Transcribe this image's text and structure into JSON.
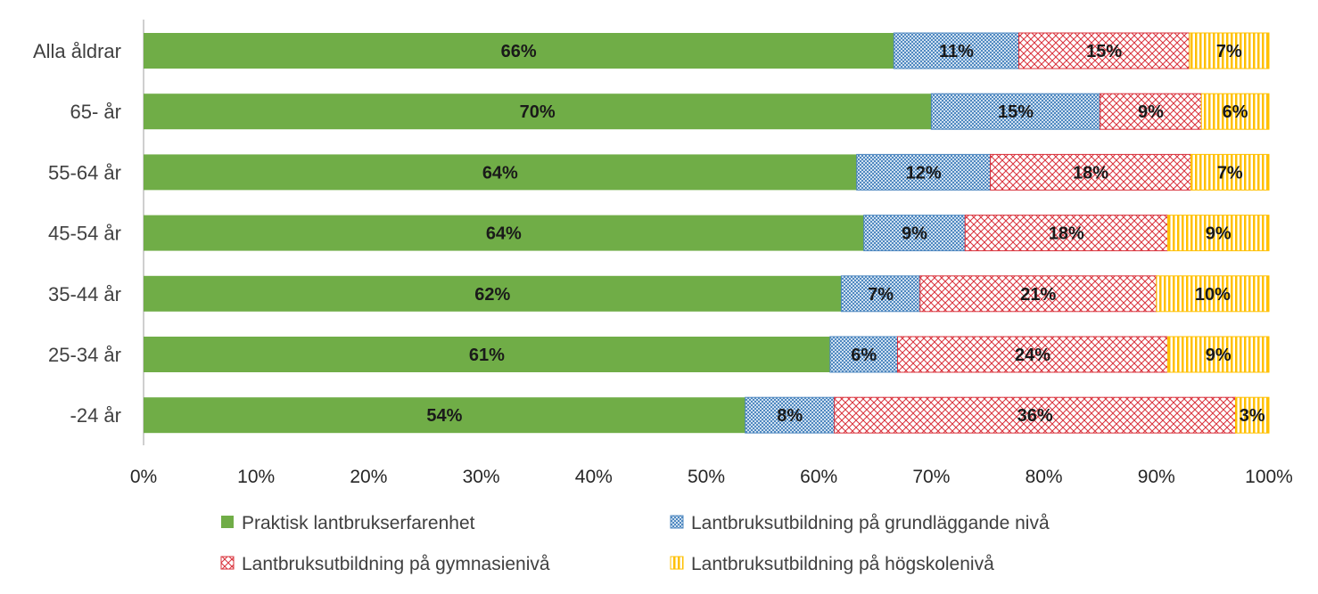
{
  "chart_data": {
    "type": "bar",
    "orientation": "horizontal",
    "stacked": true,
    "categories": [
      "Alla åldrar",
      "65- år",
      "55-64 år",
      "45-54 år",
      "35-44 år",
      "25-34 år",
      "-24 år"
    ],
    "series": [
      {
        "name": "Praktisk lantbrukserfarenhet",
        "values": [
          66,
          70,
          64,
          64,
          62,
          61,
          54
        ],
        "labels": [
          "66%",
          "70%",
          "64%",
          "64%",
          "62%",
          "61%",
          "54%"
        ],
        "color": "#70ad47",
        "pattern": "solid"
      },
      {
        "name": "Lantbruksutbildning på grundläggande nivå",
        "values": [
          11,
          15,
          12,
          9,
          7,
          6,
          8
        ],
        "labels": [
          "11%",
          "15%",
          "12%",
          "9%",
          "7%",
          "6%",
          "8%"
        ],
        "color": "#4f88c0",
        "pattern": "dots"
      },
      {
        "name": "Lantbruksutbildning på gymnasienivå",
        "values": [
          15,
          9,
          18,
          18,
          21,
          24,
          36
        ],
        "labels": [
          "15%",
          "9%",
          "18%",
          "18%",
          "21%",
          "24%",
          "36%"
        ],
        "color": "#d9303a",
        "pattern": "crosshatch"
      },
      {
        "name": "Lantbruksutbildning på högskolenivå",
        "values": [
          7,
          6,
          7,
          9,
          10,
          9,
          3
        ],
        "labels": [
          "7%",
          "6%",
          "7%",
          "9%",
          "10%",
          "9%",
          "3%"
        ],
        "color": "#ffc000",
        "pattern": "vertical"
      }
    ],
    "xlim": [
      0,
      100
    ],
    "xticks": [
      "0%",
      "10%",
      "20%",
      "30%",
      "40%",
      "50%",
      "60%",
      "70%",
      "80%",
      "90%",
      "100%"
    ],
    "grid": false,
    "legend_position": "bottom"
  }
}
